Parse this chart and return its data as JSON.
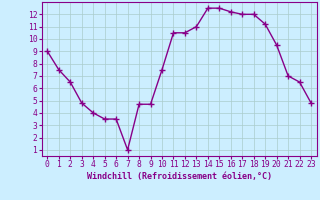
{
  "x": [
    0,
    1,
    2,
    3,
    4,
    5,
    6,
    7,
    8,
    9,
    10,
    11,
    12,
    13,
    14,
    15,
    16,
    17,
    18,
    19,
    20,
    21,
    22,
    23
  ],
  "y": [
    9,
    7.5,
    6.5,
    4.8,
    4.0,
    3.5,
    3.5,
    1.0,
    4.7,
    4.7,
    7.5,
    10.5,
    10.5,
    11.0,
    12.5,
    12.5,
    12.2,
    12.0,
    12.0,
    11.2,
    9.5,
    7.0,
    6.5,
    4.8
  ],
  "line_color": "#880088",
  "bg_color": "#cceeff",
  "grid_color": "#aacccc",
  "xlabel": "Windchill (Refroidissement éolien,°C)",
  "xlim": [
    -0.5,
    23.5
  ],
  "ylim": [
    0.5,
    13.0
  ],
  "yticks": [
    1,
    2,
    3,
    4,
    5,
    6,
    7,
    8,
    9,
    10,
    11,
    12
  ],
  "xticks": [
    0,
    1,
    2,
    3,
    4,
    5,
    6,
    7,
    8,
    9,
    10,
    11,
    12,
    13,
    14,
    15,
    16,
    17,
    18,
    19,
    20,
    21,
    22,
    23
  ],
  "marker": "+",
  "marker_size": 4,
  "line_width": 1.0,
  "xlabel_color": "#880088",
  "xlabel_fontsize": 6.0,
  "tick_fontsize": 5.8,
  "tick_color": "#880088",
  "spine_color": "#880088"
}
